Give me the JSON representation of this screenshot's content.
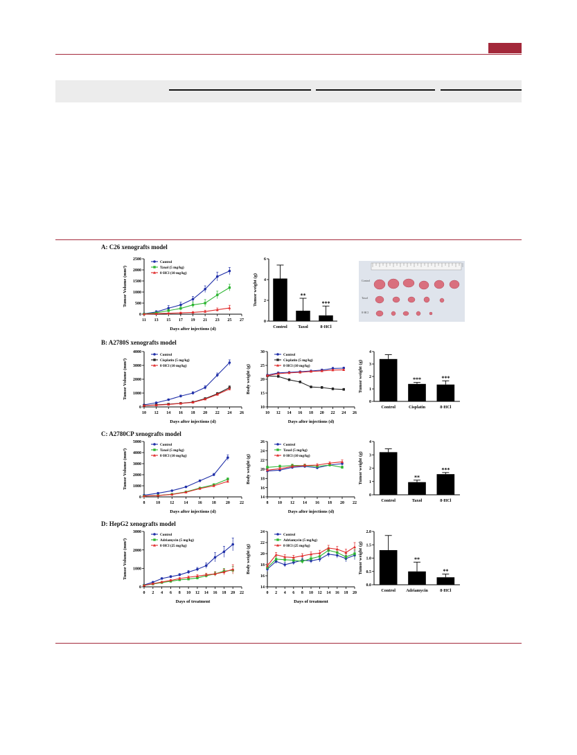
{
  "colors": {
    "accent": "#a3283a",
    "control": "#1f2fa8",
    "drug": "#2cb531",
    "hcl": "#e02a2a",
    "cisplatin": "#222222"
  },
  "panels": {
    "A": {
      "title": "A: C26 xenografts model"
    },
    "B": {
      "title": "B: A2780S xenografts model"
    },
    "C": {
      "title": "C: A2780CP xenografts model"
    },
    "D": {
      "title": "D: HepG2 xenografts model"
    }
  },
  "photo": {
    "description_icon": "tumor-photo",
    "row_labels": [
      "Control",
      "Taxol",
      "8·HCl"
    ]
  },
  "chart_data": [
    {
      "id": "A1",
      "type": "line",
      "panel": "A",
      "xlabel": "Days after injections (d)",
      "ylabel": "Tumor Volume (mm³)",
      "xlim": [
        11,
        27
      ],
      "ylim": [
        0,
        2500
      ],
      "xticks": [
        11,
        13,
        15,
        17,
        19,
        21,
        23,
        25,
        27
      ],
      "yticks": [
        0,
        500,
        1000,
        1500,
        2000,
        2500
      ],
      "legend_position": "top-left",
      "series": [
        {
          "name": "Control",
          "color": "#1f2fa8",
          "marker": "circle",
          "x": [
            11,
            13,
            15,
            17,
            19,
            21,
            23,
            25
          ],
          "values": [
            20,
            100,
            270,
            420,
            680,
            1130,
            1700,
            1950
          ],
          "err": [
            10,
            60,
            120,
            120,
            120,
            150,
            200,
            160
          ]
        },
        {
          "name": "Taxol (5 mg/kg)",
          "color": "#2cb531",
          "marker": "square",
          "x": [
            11,
            13,
            15,
            17,
            19,
            21,
            23,
            25
          ],
          "values": [
            10,
            60,
            160,
            260,
            420,
            500,
            870,
            1200
          ],
          "err": [
            10,
            40,
            60,
            90,
            120,
            160,
            170,
            150
          ]
        },
        {
          "name": "8·HCl (10 mg/kg)",
          "color": "#e02a2a",
          "marker": "triangle",
          "x": [
            11,
            13,
            15,
            17,
            19,
            21,
            23,
            25
          ],
          "values": [
            5,
            20,
            40,
            60,
            80,
            120,
            200,
            280
          ],
          "err": [
            5,
            10,
            20,
            30,
            40,
            60,
            80,
            120
          ]
        }
      ]
    },
    {
      "id": "A2",
      "type": "bar",
      "panel": "A",
      "xlabel": "",
      "ylabel": "Tumor weight (g)",
      "ylim": [
        0,
        6
      ],
      "yticks": [
        0,
        2,
        4,
        6
      ],
      "categories": [
        "Control",
        "Taxol",
        "8·HCl"
      ],
      "values": [
        4.1,
        1.0,
        0.55
      ],
      "err": [
        1.3,
        1.2,
        0.9
      ],
      "sig": [
        "",
        "**",
        "***"
      ]
    },
    {
      "id": "B1",
      "type": "line",
      "panel": "B",
      "xlabel": "Days after injections (d)",
      "ylabel": "Tumor Volume (mm³)",
      "xlim": [
        10,
        26
      ],
      "ylim": [
        0,
        4000
      ],
      "xticks": [
        10,
        12,
        14,
        16,
        18,
        20,
        22,
        24,
        26
      ],
      "yticks": [
        0,
        1000,
        2000,
        3000,
        4000
      ],
      "legend_position": "top-left",
      "series": [
        {
          "name": "Control",
          "color": "#1f2fa8",
          "marker": "circle",
          "x": [
            10,
            12,
            14,
            16,
            18,
            20,
            22,
            24
          ],
          "values": [
            150,
            300,
            520,
            780,
            1000,
            1400,
            2300,
            3200
          ],
          "err": [
            40,
            60,
            60,
            80,
            100,
            140,
            150,
            200
          ]
        },
        {
          "name": "Cisplatin (5 mg/kg)",
          "color": "#222222",
          "marker": "square",
          "x": [
            10,
            12,
            14,
            16,
            18,
            20,
            22,
            24
          ],
          "values": [
            100,
            150,
            200,
            260,
            350,
            600,
            950,
            1400
          ],
          "err": [
            20,
            30,
            40,
            40,
            60,
            70,
            90,
            120
          ]
        },
        {
          "name": "8·HCl (10 mg/kg)",
          "color": "#e02a2a",
          "marker": "triangle",
          "x": [
            10,
            12,
            14,
            16,
            18,
            20,
            22,
            24
          ],
          "values": [
            100,
            130,
            180,
            250,
            330,
            560,
            900,
            1300
          ],
          "err": [
            20,
            30,
            30,
            40,
            50,
            60,
            80,
            100
          ]
        }
      ]
    },
    {
      "id": "B2",
      "type": "line",
      "panel": "B",
      "xlabel": "Days after injections (d)",
      "ylabel": "Body weight (g)",
      "xlim": [
        10,
        26
      ],
      "ylim": [
        10,
        30
      ],
      "xticks": [
        10,
        12,
        14,
        16,
        18,
        20,
        22,
        24,
        26
      ],
      "yticks": [
        10,
        15,
        20,
        25,
        30
      ],
      "legend_position": "top",
      "series": [
        {
          "name": "Control",
          "color": "#1f2fa8",
          "marker": "circle",
          "x": [
            10,
            12,
            14,
            16,
            18,
            20,
            22,
            24
          ],
          "values": [
            21.5,
            22.3,
            22.5,
            22.7,
            23.0,
            23.3,
            23.9,
            24.0
          ],
          "err": [
            0.3,
            0.3,
            0.3,
            0.3,
            0.3,
            0.4,
            0.4,
            0.4
          ]
        },
        {
          "name": "Cisplatin (5 mg/kg)",
          "color": "#222222",
          "marker": "square",
          "x": [
            10,
            12,
            14,
            16,
            18,
            20,
            22,
            24
          ],
          "values": [
            21.2,
            21.0,
            19.8,
            19.0,
            17.2,
            17.0,
            16.5,
            16.3
          ],
          "err": [
            0.3,
            0.4,
            0.4,
            0.4,
            0.4,
            0.4,
            0.4,
            0.4
          ]
        },
        {
          "name": "8·HCl (10 mg/kg)",
          "color": "#e02a2a",
          "marker": "triangle",
          "x": [
            10,
            12,
            14,
            16,
            18,
            20,
            22,
            24
          ],
          "values": [
            21.3,
            22.0,
            22.3,
            22.5,
            22.8,
            23.0,
            23.3,
            23.4
          ],
          "err": [
            0.3,
            0.3,
            0.3,
            0.3,
            0.3,
            0.3,
            0.3,
            0.3
          ]
        }
      ]
    },
    {
      "id": "B3",
      "type": "bar",
      "panel": "B",
      "xlabel": "",
      "ylabel": "Tumor weight (g)",
      "ylim": [
        0,
        4
      ],
      "yticks": [
        0,
        1,
        2,
        3,
        4
      ],
      "categories": [
        "Control",
        "Cisplatin",
        "8·HCl"
      ],
      "values": [
        3.4,
        1.4,
        1.35
      ],
      "err": [
        0.35,
        0.12,
        0.3
      ],
      "sig": [
        "",
        "***",
        "***"
      ]
    },
    {
      "id": "C1",
      "type": "line",
      "panel": "C",
      "xlabel": "Days after injections (d)",
      "ylabel": "Tumor Volume (mm³)",
      "xlim": [
        8,
        22
      ],
      "ylim": [
        0,
        5000
      ],
      "xticks": [
        8,
        10,
        12,
        14,
        16,
        18,
        20,
        22
      ],
      "yticks": [
        0,
        1000,
        2000,
        3000,
        4000,
        5000
      ],
      "legend_position": "top-left",
      "series": [
        {
          "name": "Control",
          "color": "#1f2fa8",
          "marker": "circle",
          "x": [
            8,
            10,
            12,
            14,
            16,
            18,
            20
          ],
          "values": [
            150,
            330,
            560,
            900,
            1450,
            2000,
            3550
          ],
          "err": [
            30,
            40,
            50,
            70,
            90,
            120,
            250
          ]
        },
        {
          "name": "Taxol (5 mg/kg)",
          "color": "#2cb531",
          "marker": "square",
          "x": [
            8,
            10,
            12,
            14,
            16,
            18,
            20
          ],
          "values": [
            80,
            130,
            240,
            450,
            800,
            1100,
            1600
          ],
          "err": [
            20,
            20,
            30,
            40,
            70,
            90,
            120
          ]
        },
        {
          "name": "8·HCl (10 mg/kg)",
          "color": "#e02a2a",
          "marker": "triangle",
          "x": [
            8,
            10,
            12,
            14,
            16,
            18,
            20
          ],
          "values": [
            80,
            120,
            220,
            420,
            750,
            1000,
            1400
          ],
          "err": [
            20,
            20,
            30,
            40,
            60,
            80,
            100
          ]
        }
      ]
    },
    {
      "id": "C2",
      "type": "line",
      "panel": "C",
      "xlabel": "Days after injections (d)",
      "ylabel": "Body weight (g)",
      "xlim": [
        8,
        22
      ],
      "ylim": [
        14,
        26
      ],
      "xticks": [
        8,
        10,
        12,
        14,
        16,
        18,
        20,
        22
      ],
      "yticks": [
        14,
        16,
        18,
        20,
        22,
        24,
        26
      ],
      "legend_position": "top",
      "series": [
        {
          "name": "Control",
          "color": "#1f2fa8",
          "marker": "circle",
          "x": [
            8,
            10,
            12,
            14,
            16,
            18,
            20
          ],
          "values": [
            19.6,
            19.8,
            20.4,
            20.6,
            20.3,
            20.9,
            21.2
          ],
          "err": [
            0.3,
            0.3,
            0.3,
            0.3,
            0.3,
            0.3,
            0.4
          ]
        },
        {
          "name": "Taxol (5 mg/kg)",
          "color": "#2cb531",
          "marker": "square",
          "x": [
            8,
            10,
            12,
            14,
            16,
            18,
            20
          ],
          "values": [
            20.4,
            20.6,
            20.8,
            20.8,
            20.6,
            20.9,
            20.4
          ],
          "err": [
            0.3,
            0.3,
            0.3,
            0.3,
            0.3,
            0.3,
            0.3
          ]
        },
        {
          "name": "8·HCl (10 mg/kg)",
          "color": "#e02a2a",
          "marker": "triangle",
          "x": [
            8,
            10,
            12,
            14,
            16,
            18,
            20
          ],
          "values": [
            19.8,
            20.1,
            20.6,
            20.8,
            20.9,
            21.3,
            21.6
          ],
          "err": [
            0.3,
            0.3,
            0.3,
            0.3,
            0.3,
            0.3,
            0.4
          ]
        }
      ]
    },
    {
      "id": "C3",
      "type": "bar",
      "panel": "C",
      "xlabel": "",
      "ylabel": "Tumor weight (g)",
      "ylim": [
        0,
        4
      ],
      "yticks": [
        0,
        1,
        2,
        3,
        4
      ],
      "categories": [
        "Control",
        "Taxol",
        "8·HCl"
      ],
      "values": [
        3.2,
        0.95,
        1.55
      ],
      "err": [
        0.25,
        0.15,
        0.12
      ],
      "sig": [
        "",
        "**",
        "***"
      ]
    },
    {
      "id": "D1",
      "type": "line",
      "panel": "D",
      "xlabel": "Days of treatment",
      "ylabel": "Tumor Volume (mm³)",
      "xlim": [
        0,
        22
      ],
      "ylim": [
        0,
        3000
      ],
      "xticks": [
        0,
        2,
        4,
        6,
        8,
        10,
        12,
        14,
        16,
        18,
        20,
        22
      ],
      "yticks": [
        0,
        1000,
        2000,
        3000
      ],
      "legend_position": "top-left",
      "series": [
        {
          "name": "Control",
          "color": "#1f2fa8",
          "marker": "circle",
          "x": [
            0,
            2,
            4,
            6,
            8,
            10,
            12,
            14,
            16,
            18,
            20
          ],
          "values": [
            100,
            250,
            450,
            550,
            650,
            800,
            950,
            1150,
            1600,
            1900,
            2300
          ],
          "err": [
            20,
            40,
            50,
            60,
            70,
            90,
            100,
            150,
            250,
            300,
            350
          ]
        },
        {
          "name": "Adriamycin (5 mg/kg)",
          "color": "#2cb531",
          "marker": "square",
          "x": [
            0,
            2,
            4,
            6,
            8,
            10,
            12,
            14,
            16,
            18,
            20
          ],
          "values": [
            80,
            150,
            230,
            300,
            380,
            420,
            480,
            600,
            700,
            850,
            900
          ],
          "err": [
            20,
            30,
            40,
            50,
            60,
            60,
            70,
            90,
            120,
            150,
            200
          ]
        },
        {
          "name": "8·HCl (25 mg/kg)",
          "color": "#e02a2a",
          "marker": "triangle",
          "x": [
            0,
            2,
            4,
            6,
            8,
            10,
            12,
            14,
            16,
            18,
            20
          ],
          "values": [
            80,
            170,
            260,
            350,
            450,
            520,
            580,
            650,
            700,
            800,
            950
          ],
          "err": [
            20,
            30,
            40,
            50,
            60,
            70,
            80,
            90,
            100,
            150,
            250
          ]
        }
      ]
    },
    {
      "id": "D2",
      "type": "line",
      "panel": "D",
      "xlabel": "Days of treatment",
      "ylabel": "Body weight (g)",
      "xlim": [
        0,
        20
      ],
      "ylim": [
        14,
        24
      ],
      "xticks": [
        0,
        2,
        4,
        6,
        8,
        10,
        12,
        14,
        16,
        18,
        20
      ],
      "yticks": [
        14,
        16,
        18,
        20,
        22,
        24
      ],
      "legend_position": "top",
      "series": [
        {
          "name": "Control",
          "color": "#1f2fa8",
          "marker": "circle",
          "x": [
            0,
            2,
            4,
            6,
            8,
            10,
            12,
            14,
            16,
            18,
            20
          ],
          "values": [
            17.2,
            18.6,
            18.0,
            18.4,
            18.8,
            18.7,
            19.0,
            19.9,
            19.7,
            19.1,
            19.7
          ],
          "err": [
            0.4,
            0.4,
            0.4,
            0.4,
            0.4,
            0.4,
            0.5,
            0.5,
            0.5,
            0.6,
            0.8
          ]
        },
        {
          "name": "Adriamycin (5 mg/kg)",
          "color": "#2cb531",
          "marker": "square",
          "x": [
            0,
            2,
            4,
            6,
            8,
            10,
            12,
            14,
            16,
            18,
            20
          ],
          "values": [
            17.5,
            19.0,
            18.9,
            18.8,
            18.6,
            19.1,
            19.5,
            20.6,
            20.2,
            19.4,
            20.0
          ],
          "err": [
            0.4,
            0.4,
            0.4,
            0.4,
            0.4,
            0.4,
            0.5,
            0.5,
            0.5,
            0.6,
            0.8
          ]
        },
        {
          "name": "8·HCl (25 mg/kg)",
          "color": "#e02a2a",
          "marker": "triangle",
          "x": [
            0,
            2,
            4,
            6,
            8,
            10,
            12,
            14,
            16,
            18,
            20
          ],
          "values": [
            17.8,
            19.8,
            19.4,
            19.3,
            19.6,
            19.9,
            20.1,
            21.0,
            20.8,
            20.2,
            21.2
          ],
          "err": [
            0.4,
            0.4,
            0.4,
            0.4,
            0.4,
            0.4,
            0.5,
            0.5,
            0.5,
            0.6,
            0.8
          ]
        }
      ]
    },
    {
      "id": "D3",
      "type": "bar",
      "panel": "D",
      "xlabel": "",
      "ylabel": "Tumor weight (g)",
      "ylim": [
        0,
        2.0
      ],
      "yticks": [
        0,
        0.5,
        1.0,
        1.5,
        2.0
      ],
      "categories": [
        "Control",
        "Adriamycin",
        "8·HCl"
      ],
      "values": [
        1.3,
        0.5,
        0.28
      ],
      "err": [
        0.55,
        0.35,
        0.12
      ],
      "sig": [
        "",
        "**",
        "**"
      ]
    }
  ]
}
